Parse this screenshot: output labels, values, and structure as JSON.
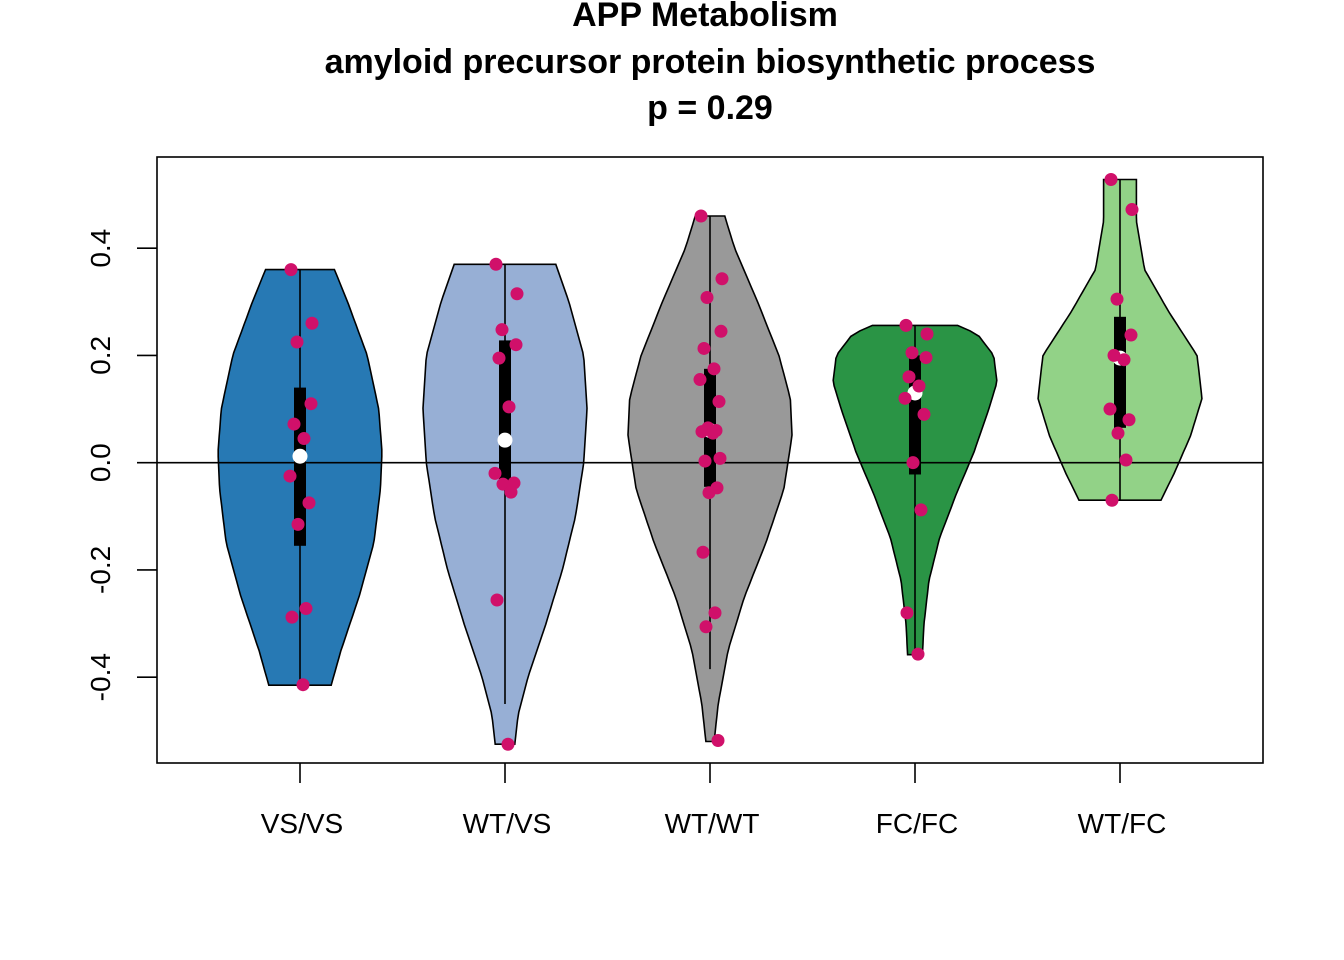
{
  "chart_data": {
    "type": "violin",
    "title": "APP Metabolism",
    "subtitle": "amyloid precursor protein biosynthetic process",
    "pvalue_label": "p = 0.29",
    "xlabel": "",
    "ylabel": "",
    "ylim": [
      -0.56,
      0.57
    ],
    "yticks": [
      -0.4,
      -0.2,
      0.0,
      0.2,
      0.4
    ],
    "ytick_labels": [
      "-0.4",
      "-0.2",
      "0.0",
      "0.2",
      "0.4"
    ],
    "reference_line": 0.0,
    "point_color": "#D0106A",
    "median_color": "#ffffff",
    "groups": [
      {
        "label": "VS/VS",
        "fill": "#2779B4",
        "min": -0.415,
        "max": 0.36,
        "q1": -0.155,
        "median": 0.012,
        "q3": 0.14,
        "whisker_low": -0.415,
        "whisker_high": 0.36,
        "points": [
          0.36,
          0.26,
          0.225,
          0.11,
          0.072,
          0.045,
          -0.025,
          -0.075,
          -0.115,
          -0.272,
          -0.288,
          -0.414
        ],
        "violin_profile": [
          [
            -0.415,
            0.38
          ],
          [
            -0.35,
            0.5
          ],
          [
            -0.25,
            0.72
          ],
          [
            -0.15,
            0.9
          ],
          [
            -0.05,
            0.98
          ],
          [
            0.02,
            1.0
          ],
          [
            0.1,
            0.96
          ],
          [
            0.2,
            0.82
          ],
          [
            0.3,
            0.58
          ],
          [
            0.36,
            0.42
          ]
        ]
      },
      {
        "label": "WT/VS",
        "fill": "#97AFD5",
        "min": -0.525,
        "max": 0.37,
        "q1": -0.045,
        "median": 0.042,
        "q3": 0.228,
        "whisker_low": -0.45,
        "whisker_high": 0.37,
        "points": [
          0.37,
          0.315,
          0.248,
          0.22,
          0.195,
          0.104,
          -0.02,
          -0.038,
          -0.04,
          -0.055,
          -0.256,
          -0.525
        ],
        "violin_profile": [
          [
            -0.525,
            0.12
          ],
          [
            -0.47,
            0.16
          ],
          [
            -0.4,
            0.28
          ],
          [
            -0.3,
            0.5
          ],
          [
            -0.2,
            0.7
          ],
          [
            -0.1,
            0.86
          ],
          [
            0.0,
            0.96
          ],
          [
            0.1,
            1.0
          ],
          [
            0.2,
            0.96
          ],
          [
            0.3,
            0.78
          ],
          [
            0.37,
            0.62
          ]
        ]
      },
      {
        "label": "WT/WT",
        "fill": "#999999",
        "min": -0.52,
        "max": 0.46,
        "q1": -0.045,
        "median": 0.06,
        "q3": 0.175,
        "whisker_low": -0.385,
        "whisker_high": 0.46,
        "points": [
          0.46,
          0.343,
          0.308,
          0.245,
          0.213,
          0.175,
          0.155,
          0.114,
          0.065,
          0.06,
          0.058,
          0.055,
          0.008,
          0.003,
          -0.047,
          -0.056,
          -0.167,
          -0.28,
          -0.306,
          -0.518
        ],
        "violin_profile": [
          [
            -0.52,
            0.05
          ],
          [
            -0.45,
            0.1
          ],
          [
            -0.35,
            0.22
          ],
          [
            -0.25,
            0.42
          ],
          [
            -0.15,
            0.68
          ],
          [
            -0.05,
            0.9
          ],
          [
            0.05,
            1.0
          ],
          [
            0.12,
            0.98
          ],
          [
            0.2,
            0.84
          ],
          [
            0.3,
            0.58
          ],
          [
            0.4,
            0.3
          ],
          [
            0.46,
            0.18
          ]
        ]
      },
      {
        "label": "FC/FC",
        "fill": "#2A9445",
        "min": -0.358,
        "max": 0.256,
        "q1": -0.022,
        "median": 0.13,
        "q3": 0.2,
        "whisker_low": -0.358,
        "whisker_high": 0.256,
        "points": [
          0.256,
          0.24,
          0.205,
          0.196,
          0.16,
          0.143,
          0.12,
          0.09,
          0.0,
          -0.088,
          -0.28,
          -0.357
        ],
        "violin_profile": [
          [
            -0.358,
            0.09
          ],
          [
            -0.3,
            0.11
          ],
          [
            -0.22,
            0.17
          ],
          [
            -0.14,
            0.3
          ],
          [
            -0.06,
            0.5
          ],
          [
            0.02,
            0.72
          ],
          [
            0.1,
            0.9
          ],
          [
            0.15,
            1.0
          ],
          [
            0.2,
            0.96
          ],
          [
            0.24,
            0.76
          ],
          [
            0.256,
            0.52
          ]
        ]
      },
      {
        "label": "WT/FC",
        "fill": "#92D287",
        "min": -0.07,
        "max": 0.528,
        "q1": 0.065,
        "median": 0.195,
        "q3": 0.272,
        "whisker_low": -0.07,
        "whisker_high": 0.528,
        "points": [
          0.528,
          0.472,
          0.305,
          0.238,
          0.2,
          0.192,
          0.1,
          0.08,
          0.055,
          0.005,
          -0.07
        ],
        "violin_profile": [
          [
            -0.07,
            0.5
          ],
          [
            -0.02,
            0.66
          ],
          [
            0.05,
            0.86
          ],
          [
            0.12,
            1.0
          ],
          [
            0.2,
            0.94
          ],
          [
            0.28,
            0.6
          ],
          [
            0.36,
            0.3
          ],
          [
            0.45,
            0.2
          ],
          [
            0.528,
            0.2
          ]
        ]
      }
    ]
  }
}
